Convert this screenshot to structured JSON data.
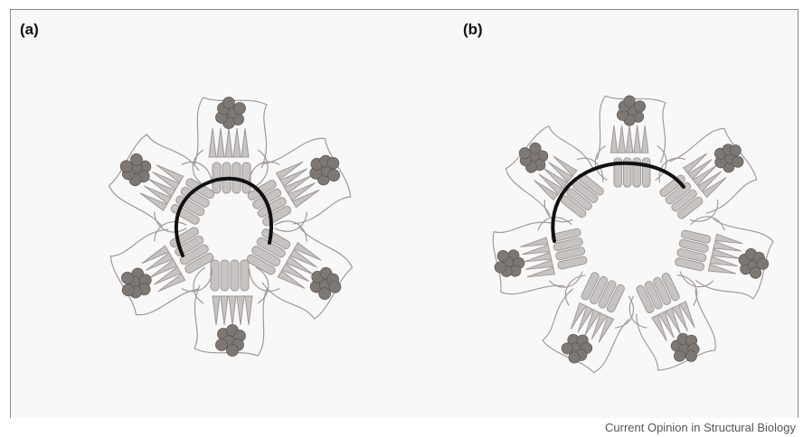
{
  "panels": [
    {
      "label": "(a)",
      "subunits": 6,
      "ring": "open"
    },
    {
      "label": "(b)",
      "subunits": 7,
      "ring": "closed"
    }
  ],
  "credit": "Current Opinion in Structural Biology",
  "colors": {
    "ribbon": "#c7c3c1",
    "ribbon_edge": "#9e9896",
    "ligand": "#7e7875",
    "arc": "#111111",
    "background": "#f8f8f8"
  }
}
